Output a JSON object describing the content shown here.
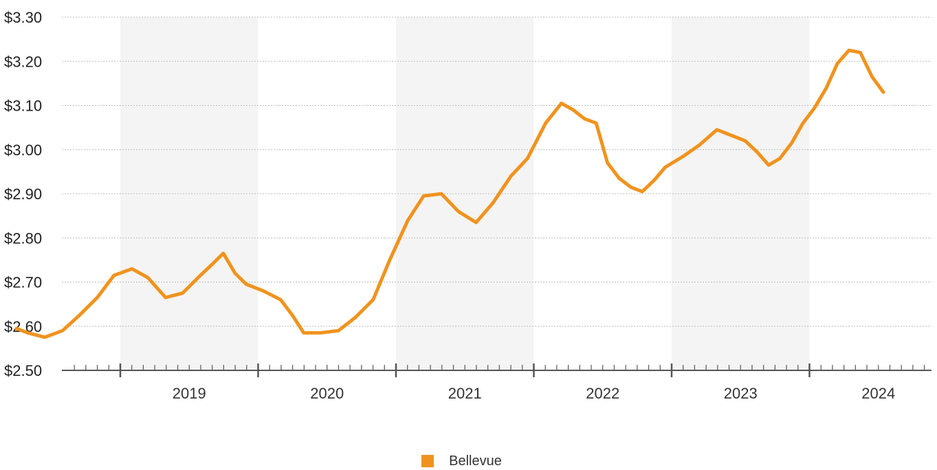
{
  "chart_data": {
    "type": "line",
    "title": "",
    "xlabel": "",
    "ylabel": "",
    "ylim": [
      2.5,
      3.3
    ],
    "xlim": [
      "2018-04-01",
      "2024-07-15"
    ],
    "y_ticks": [
      2.5,
      2.6,
      2.7,
      2.8,
      2.9,
      3.0,
      3.1,
      3.2,
      3.3
    ],
    "y_tick_labels": [
      "$2.50",
      "$2.60",
      "$2.70",
      "$2.80",
      "$2.90",
      "$3.00",
      "$3.10",
      "$3.20",
      "$3.30"
    ],
    "x_tick_labels": [
      "2019",
      "2020",
      "2021",
      "2022",
      "2023",
      "2024"
    ],
    "grid": "horizontal dotted, alternating year shading",
    "legend_position": "bottom-center",
    "colors": {
      "line": "#F0931E",
      "band": "#F4F4F4",
      "grid": "#BBBBBB",
      "axis": "#555555"
    },
    "series": [
      {
        "name": "Bellevue",
        "x": [
          "2018-04-01",
          "2018-05-01",
          "2018-06-15",
          "2018-08-01",
          "2018-09-15",
          "2018-11-01",
          "2018-12-15",
          "2019-02-01",
          "2019-03-15",
          "2019-05-01",
          "2019-06-15",
          "2019-08-01",
          "2019-09-01",
          "2019-10-01",
          "2019-11-01",
          "2019-12-01",
          "2020-01-15",
          "2020-03-01",
          "2020-04-01",
          "2020-05-01",
          "2020-06-15",
          "2020-08-01",
          "2020-09-15",
          "2020-11-01",
          "2020-12-15",
          "2021-02-01",
          "2021-03-15",
          "2021-05-01",
          "2021-06-15",
          "2021-08-01",
          "2021-09-15",
          "2021-11-01",
          "2021-12-15",
          "2022-02-01",
          "2022-03-15",
          "2022-04-15",
          "2022-05-15",
          "2022-06-15",
          "2022-07-15",
          "2022-08-15",
          "2022-09-15",
          "2022-10-15",
          "2022-11-15",
          "2022-12-15",
          "2023-02-01",
          "2023-03-15",
          "2023-05-01",
          "2023-06-15",
          "2023-07-15",
          "2023-08-15",
          "2023-09-15",
          "2023-10-15",
          "2023-11-15",
          "2023-12-15",
          "2024-01-15",
          "2024-02-15",
          "2024-03-15",
          "2024-04-15",
          "2024-05-15",
          "2024-06-15",
          "2024-07-15"
        ],
        "values": [
          2.595,
          2.585,
          2.575,
          2.59,
          2.625,
          2.665,
          2.715,
          2.73,
          2.71,
          2.665,
          2.675,
          2.715,
          2.74,
          2.765,
          2.72,
          2.695,
          2.68,
          2.66,
          2.625,
          2.585,
          2.585,
          2.59,
          2.62,
          2.66,
          2.75,
          2.84,
          2.895,
          2.9,
          2.86,
          2.835,
          2.88,
          2.94,
          2.98,
          3.06,
          3.105,
          3.09,
          3.07,
          3.06,
          2.97,
          2.935,
          2.915,
          2.905,
          2.93,
          2.96,
          2.985,
          3.01,
          3.045,
          3.03,
          3.02,
          2.995,
          2.965,
          2.98,
          3.015,
          3.06,
          3.095,
          3.14,
          3.195,
          3.225,
          3.22,
          3.165,
          3.13
        ]
      }
    ]
  }
}
